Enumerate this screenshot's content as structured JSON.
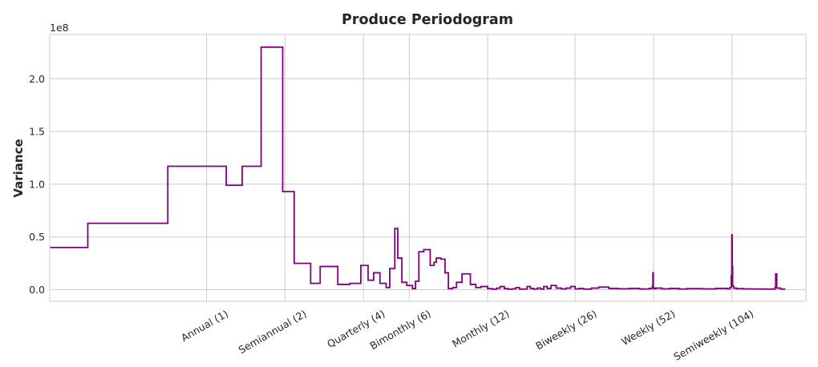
{
  "chart_data": {
    "type": "line",
    "drawstyle": "steps-post",
    "title": "Produce Periodogram",
    "ylabel": "Variance",
    "xlabel": "",
    "x_scale": "log",
    "xlim": [
      0.25,
      200
    ],
    "ylim": [
      -11000000.0,
      242000000.0
    ],
    "y_offset_text": "1e8",
    "y_ticks": [
      0.0,
      50000000.0,
      100000000.0,
      150000000.0,
      200000000.0
    ],
    "y_tick_labels": [
      "0.0",
      "0.5",
      "1.0",
      "1.5",
      "2.0"
    ],
    "x_ticks": [
      1,
      2,
      4,
      6,
      12,
      26,
      52,
      104
    ],
    "x_tick_labels": [
      "Annual (1)",
      "Semiannual (2)",
      "Quarterly (4)",
      "Bimonthly (6)",
      "Monthly (12)",
      "Biweekly (26)",
      "Weekly (52)",
      "Semiweekly (104)"
    ],
    "grid": true,
    "line_color": "#800080",
    "series": [
      {
        "x": [
          0.25,
          0.35,
          0.71,
          1.19,
          1.37,
          1.62,
          1.96,
          2.17,
          2.51,
          2.73,
          3.19,
          3.55,
          3.91,
          4.17,
          4.38,
          4.63,
          4.89,
          5.05,
          5.28,
          5.42,
          5.62,
          5.87,
          6.17,
          6.34,
          6.53,
          6.82,
          7.22,
          7.47,
          7.62,
          7.93,
          8.23,
          8.48,
          8.81,
          9.11,
          9.56,
          10.3,
          10.8,
          11.3,
          12.0,
          12.5,
          13.0,
          13.4,
          13.9,
          14.4,
          14.9,
          15.4,
          15.9,
          16.4,
          17.0,
          17.5,
          18.0,
          18.6,
          19.2,
          19.7,
          20.3,
          21.0,
          22.0,
          23.0,
          24.0,
          25.0,
          26.0,
          27.0,
          28.0,
          30.0,
          32.0,
          35.0,
          38.0,
          42.0,
          46.0,
          50.0,
          51.4,
          51.7,
          51.9,
          52.2,
          53.0,
          56.0,
          60.0,
          65.0,
          70.0,
          80.0,
          90.0,
          100.0,
          102.0,
          103.3,
          103.8,
          104.2,
          104.6,
          105.5,
          108.0,
          115.0,
          125.0,
          140.0,
          150.0,
          152.0,
          153.0,
          154.5,
          160.0,
          165.0
        ],
        "y": [
          40000000,
          63000000,
          117000000,
          99000000,
          117000000,
          230000000,
          93000000,
          25000000,
          6000000,
          22000000,
          5000000,
          6000000,
          23000000,
          9000000,
          16000000,
          6000000,
          2000000,
          20000000,
          58000000,
          30000000,
          7000000,
          4000000,
          1000000,
          8000000,
          36000000,
          38000000,
          23000000,
          26000000,
          30000000,
          29000000,
          16000000,
          1000000,
          2000000,
          7000000,
          15000000,
          5000000,
          2000000,
          3000000,
          1000000,
          500000,
          1500000,
          3000000,
          1000000,
          500000,
          800000,
          2000000,
          500000,
          600000,
          3000000,
          1200000,
          600000,
          1500000,
          500000,
          3000000,
          1200000,
          4000000,
          1500000,
          800000,
          1500000,
          3000000,
          800000,
          1200000,
          600000,
          1500000,
          2500000,
          1200000,
          900000,
          1200000,
          700000,
          1200000,
          3000000,
          16000000,
          2000000,
          1000000,
          1500000,
          800000,
          1200000,
          700000,
          1000000,
          800000,
          1200000,
          900000,
          2000000,
          13000000,
          52000000,
          22000000,
          3500000,
          1500000,
          1000000,
          800000,
          700000,
          600000,
          600000,
          2000000,
          15000000,
          1500000,
          600000,
          500000
        ]
      }
    ]
  }
}
